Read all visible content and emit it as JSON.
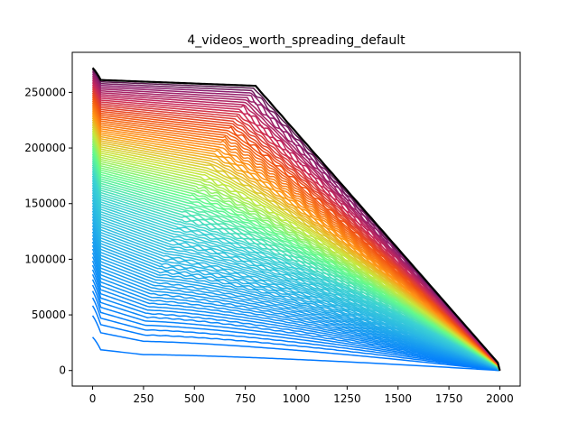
{
  "chart_data": {
    "type": "line",
    "title": "4_videos_worth_spreading_default",
    "xlabel": "",
    "ylabel": "",
    "xlim": [
      -100,
      2100
    ],
    "ylim": [
      -14000,
      286000
    ],
    "xticks": [
      0,
      250,
      500,
      750,
      1000,
      1250,
      1500,
      1750,
      2000
    ],
    "yticks": [
      0,
      50000,
      100000,
      150000,
      200000,
      250000
    ],
    "xtick_labels": [
      "0",
      "250",
      "500",
      "750",
      "1000",
      "1250",
      "1500",
      "1750",
      "2000"
    ],
    "ytick_labels": [
      "0",
      "50000",
      "100000",
      "150000",
      "200000",
      "250000"
    ],
    "grid": false,
    "legend": "none",
    "series_count": 100,
    "x_end": 2000,
    "colormap": "turbo-like (blue -> cyan -> green -> orange -> red -> purple -> black)",
    "final_series_color": "#000000",
    "series_summary": {
      "initial_y_range": [
        30000,
        272000
      ],
      "plateau_y_range": [
        20000,
        262000
      ],
      "end_y_range": [
        0,
        6000
      ],
      "high_series_knee_x": [
        600,
        1000
      ]
    },
    "representative_series": [
      {
        "x": [
          0,
          50,
          250,
          500,
          750,
          1000,
          1250,
          1500,
          1750,
          1950,
          2000
        ],
        "y": [
          30000,
          22000,
          19000,
          16000,
          13000,
          10000,
          7500,
          5000,
          2500,
          500,
          0
        ]
      },
      {
        "x": [
          0,
          50,
          250,
          500,
          750,
          1000,
          1250,
          1500,
          1750,
          1950,
          2000
        ],
        "y": [
          100000,
          55000,
          48000,
          43000,
          38000,
          29000,
          20000,
          12000,
          5000,
          1000,
          0
        ]
      },
      {
        "x": [
          0,
          50,
          250,
          500,
          750,
          850,
          1000,
          1250,
          1500,
          1750,
          1950,
          2000
        ],
        "y": [
          150000,
          125000,
          120000,
          115000,
          110000,
          100000,
          85000,
          62000,
          38000,
          15000,
          2000,
          0
        ]
      },
      {
        "x": [
          0,
          50,
          250,
          500,
          750,
          900,
          1250,
          1500,
          1750,
          1950,
          2000
        ],
        "y": [
          200000,
          192000,
          188000,
          184000,
          180000,
          170000,
          118000,
          75000,
          33000,
          4000,
          0
        ]
      },
      {
        "x": [
          0,
          50,
          250,
          500,
          700,
          1000,
          1250,
          1500,
          1750,
          1950,
          2000
        ],
        "y": [
          230000,
          225000,
          224000,
          222000,
          215000,
          185000,
          145000,
          100000,
          50000,
          8000,
          0
        ]
      },
      {
        "x": [
          0,
          50,
          250,
          500,
          650,
          900,
          1250,
          1500,
          1750,
          1950,
          2000
        ],
        "y": [
          272000,
          264000,
          263000,
          262000,
          261000,
          245000,
          185000,
          130000,
          68000,
          8000,
          0
        ]
      }
    ]
  }
}
